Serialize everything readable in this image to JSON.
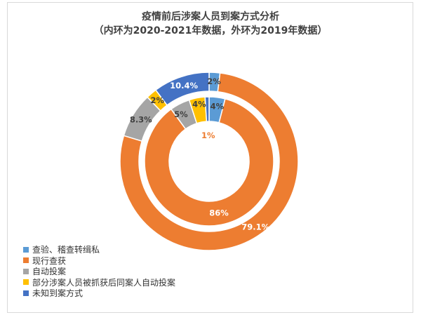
{
  "chart_data": {
    "type": "pie",
    "title": "疫情前后涉案人员到案方式分析",
    "subtitle": "（内环为2020-2021年数据，外环为2019年数据）",
    "categories": [
      "查验、稽查转缉私",
      "现行查获",
      "自动投案",
      "部分涉案人员被抓获后同案人自动投案",
      "未知到案方式"
    ],
    "colors": [
      "#5b9bd5",
      "#ed7d31",
      "#a5a5a5",
      "#ffc000",
      "#4472c4"
    ],
    "series": [
      {
        "ring": "inner",
        "values": [
          4,
          86,
          5,
          4,
          1
        ],
        "labels": [
          "4%",
          "86%",
          "5%",
          "4%",
          "1%"
        ]
      },
      {
        "ring": "outer",
        "values": [
          2,
          79.1,
          8.3,
          2,
          10.4
        ],
        "labels": [
          "2%",
          "79.1%",
          "8.3%",
          "2%",
          "10.4%"
        ]
      }
    ]
  }
}
